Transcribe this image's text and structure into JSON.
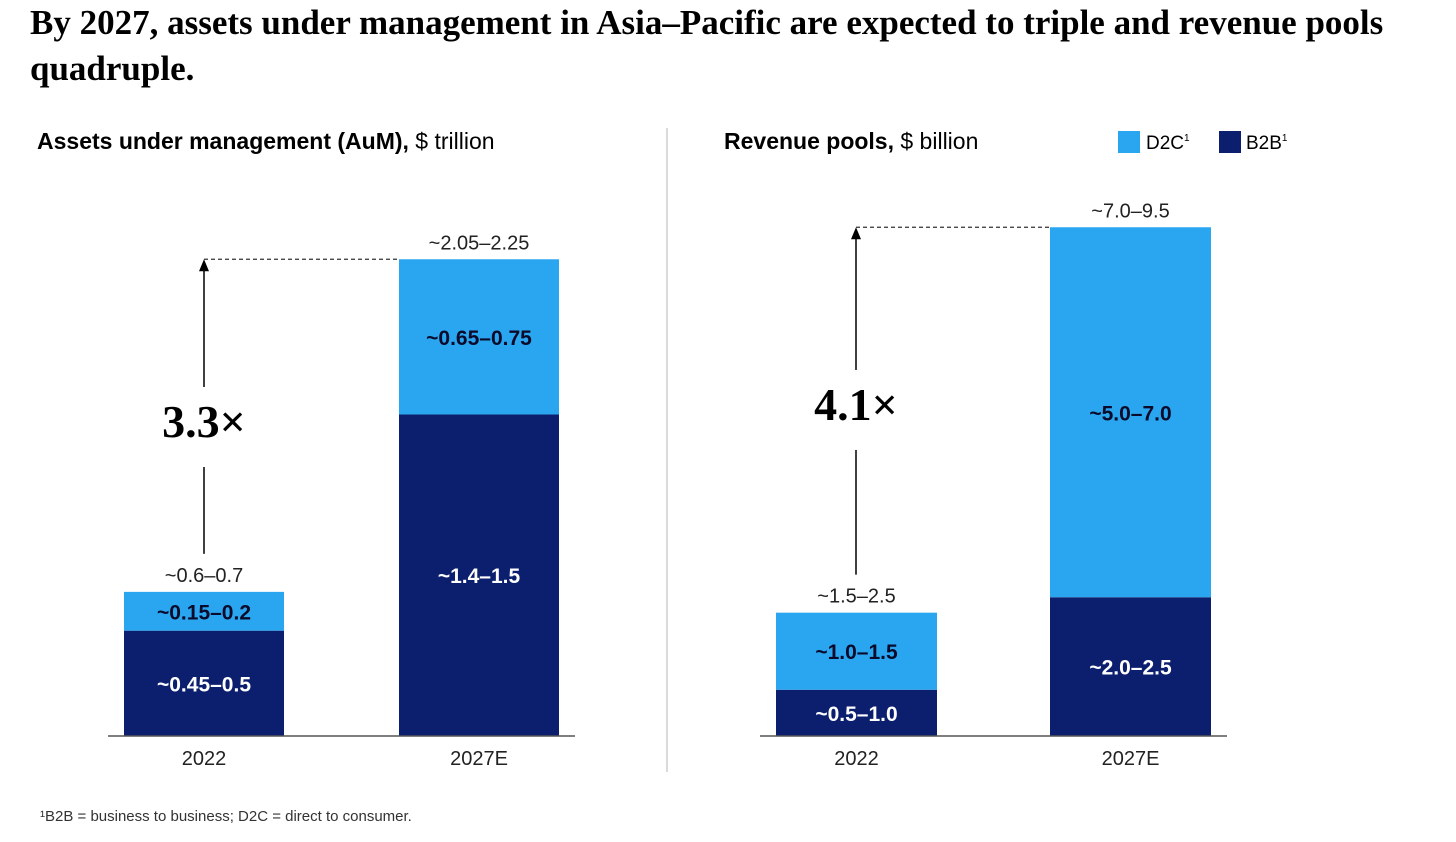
{
  "title": "By 2027, assets under management in Asia–Pacific are expected to triple and revenue pools quadruple.",
  "footnote": "¹B2B = business to business; D2C = direct to consumer.",
  "colors": {
    "d2c": "#2aa6f0",
    "b2b": "#0b1f6e",
    "axis": "#555555",
    "divider": "#cfcfcf"
  },
  "legend": [
    {
      "name": "D2C",
      "sup": "1",
      "color": "#2aa6f0"
    },
    {
      "name": "B2B",
      "sup": "1",
      "color": "#0b1f6e"
    }
  ],
  "chart_data": [
    {
      "type": "bar",
      "stacked": true,
      "title_bold": "Assets under management (AuM),",
      "title_rest": " $ trillion",
      "categories": [
        "2022",
        "2027E"
      ],
      "series": [
        {
          "name": "B2B",
          "values": [
            0.475,
            1.45
          ],
          "labels": [
            "~0.45–0.5",
            "~1.4–1.5"
          ]
        },
        {
          "name": "D2C",
          "values": [
            0.175,
            0.7
          ],
          "labels": [
            "~0.15–0.2",
            "~0.65–0.75"
          ]
        }
      ],
      "totals": [
        "~0.6–0.7",
        "~2.05–2.25"
      ],
      "multiplier": "3.3×",
      "ylim": [
        0,
        2.3
      ]
    },
    {
      "type": "bar",
      "stacked": true,
      "title_bold": "Revenue pools,",
      "title_rest": " $ billion",
      "categories": [
        "2022",
        "2027E"
      ],
      "series": [
        {
          "name": "B2B",
          "values": [
            0.75,
            2.25
          ],
          "labels": [
            "~0.5–1.0",
            "~2.0–2.5"
          ]
        },
        {
          "name": "D2C",
          "values": [
            1.25,
            6.0
          ],
          "labels": [
            "~1.0–1.5",
            "~5.0–7.0"
          ]
        }
      ],
      "totals": [
        "~1.5–2.5",
        "~7.0–9.5"
      ],
      "multiplier": "4.1×",
      "ylim": [
        0,
        9.0
      ]
    }
  ]
}
